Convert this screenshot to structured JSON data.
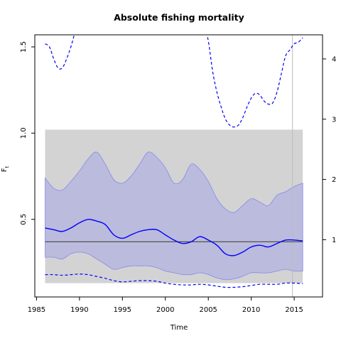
{
  "chart_data": {
    "type": "line",
    "title": "Absolute fishing mortality",
    "xlabel": "Time",
    "ylabel": "F",
    "ylabel_subscript": "t",
    "xlim": [
      1984.8,
      2018.3
    ],
    "ylim": [
      0.05,
      1.57
    ],
    "y2lim": [
      0.05,
      4.4
    ],
    "xticks": [
      "1985",
      "1990",
      "1995",
      "2000",
      "2005",
      "2010",
      "2015"
    ],
    "yticks": [
      "0.5",
      "1.0",
      "1.5"
    ],
    "y2ticks": [
      "1",
      "2",
      "3",
      "4"
    ],
    "grid": false,
    "colors": {
      "estimate": "#0000ff",
      "ci_band": "#bbbbdd",
      "ci_band_edge": "#8888ee",
      "prior_band": "#d3d3d3",
      "reference_line": "#444444",
      "vline": "#bbbbbb"
    },
    "prior_band": {
      "x": [
        1986,
        2016
      ],
      "y": [
        0.13,
        1.02
      ]
    },
    "vertical_line_x": 2014.8,
    "horizontal_reference": {
      "x": [
        1986,
        2016
      ],
      "y": 0.37
    },
    "series": [
      {
        "style": "solid",
        "x": [
          1986,
          1987,
          1988,
          1989,
          1990,
          1991,
          1992,
          1993,
          1994,
          1995,
          1996,
          1997,
          1998,
          1999,
          2000,
          2001,
          2002,
          2003,
          2004,
          2005,
          2006,
          2007,
          2008,
          2009,
          2010,
          2011,
          2012,
          2013,
          2014,
          2015,
          2016
        ],
        "y": [
          0.45,
          0.44,
          0.43,
          0.45,
          0.48,
          0.5,
          0.49,
          0.47,
          0.41,
          0.39,
          0.41,
          0.43,
          0.44,
          0.44,
          0.41,
          0.38,
          0.36,
          0.37,
          0.4,
          0.38,
          0.35,
          0.3,
          0.29,
          0.31,
          0.34,
          0.35,
          0.34,
          0.36,
          0.38,
          0.38,
          0.375
        ]
      },
      {
        "style": "band",
        "x": [
          1986,
          1987,
          1988,
          1989,
          1990,
          1991,
          1992,
          1993,
          1994,
          1995,
          1996,
          1997,
          1998,
          1999,
          2000,
          2001,
          2002,
          2003,
          2004,
          2005,
          2006,
          2007,
          2008,
          2009,
          2010,
          2011,
          2012,
          2013,
          2014,
          2015,
          2016
        ],
        "upper": [
          0.74,
          0.68,
          0.67,
          0.72,
          0.78,
          0.85,
          0.89,
          0.82,
          0.73,
          0.71,
          0.75,
          0.82,
          0.89,
          0.86,
          0.8,
          0.71,
          0.73,
          0.82,
          0.79,
          0.72,
          0.62,
          0.56,
          0.54,
          0.58,
          0.62,
          0.6,
          0.58,
          0.64,
          0.66,
          0.69,
          0.71
        ],
        "lower": [
          0.28,
          0.28,
          0.27,
          0.3,
          0.31,
          0.3,
          0.27,
          0.24,
          0.21,
          0.22,
          0.23,
          0.23,
          0.23,
          0.22,
          0.2,
          0.19,
          0.18,
          0.18,
          0.19,
          0.18,
          0.16,
          0.15,
          0.155,
          0.17,
          0.19,
          0.19,
          0.19,
          0.2,
          0.21,
          0.2,
          0.2
        ]
      },
      {
        "style": "dashed",
        "axis": "right",
        "x": [
          1986,
          1986.5,
          1987,
          1987.5,
          1988,
          1988.5,
          1989,
          1989.5,
          1990
        ],
        "y": [
          4.25,
          4.2,
          4.0,
          3.85,
          3.85,
          4.0,
          4.2,
          4.45,
          4.65
        ]
      },
      {
        "style": "dashed",
        "axis": "right",
        "x": [
          2004.5,
          2005,
          2005.5,
          2006,
          2006.5,
          2007,
          2007.5,
          2008,
          2008.5,
          2009,
          2009.5,
          2010,
          2010.5,
          2011,
          2011.5,
          2012,
          2012.5,
          2013,
          2013.5,
          2014,
          2014.5,
          2015,
          2015.5,
          2016
        ],
        "y": [
          4.6,
          4.3,
          3.8,
          3.45,
          3.2,
          3.0,
          2.9,
          2.87,
          2.9,
          3.02,
          3.2,
          3.35,
          3.43,
          3.4,
          3.3,
          3.25,
          3.27,
          3.45,
          3.75,
          4.05,
          4.15,
          4.25,
          4.28,
          4.35
        ]
      },
      {
        "style": "dashed",
        "axis": "right",
        "x": [
          1986,
          1987,
          1988,
          1989,
          1990,
          1991,
          1992,
          1993,
          1994,
          1995,
          1996,
          1997,
          1998,
          1999,
          2000,
          2001,
          2002,
          2003,
          2004,
          2005,
          2006,
          2007,
          2008,
          2009,
          2010,
          2011,
          2012,
          2013,
          2014,
          2015,
          2016
        ],
        "y": [
          0.42,
          0.42,
          0.41,
          0.42,
          0.43,
          0.42,
          0.39,
          0.36,
          0.32,
          0.3,
          0.31,
          0.32,
          0.32,
          0.31,
          0.28,
          0.26,
          0.25,
          0.25,
          0.26,
          0.25,
          0.23,
          0.21,
          0.21,
          0.22,
          0.24,
          0.26,
          0.26,
          0.26,
          0.28,
          0.28,
          0.27
        ]
      }
    ]
  }
}
